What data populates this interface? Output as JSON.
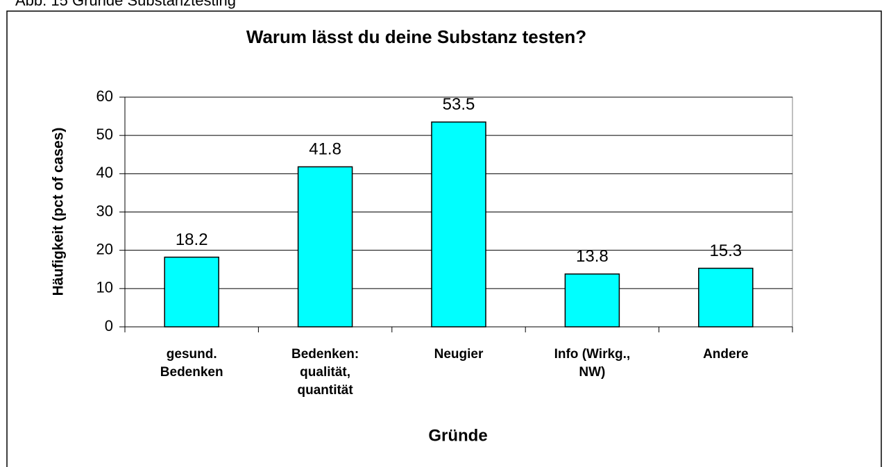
{
  "caption": "Abb. 15 Gründe Substanztesting",
  "chart_data": {
    "type": "bar",
    "title": "Warum lässt du deine Substanz testen?",
    "x_label": "Gründe",
    "y_label": "Häufigkeit (pct of cases)",
    "categories": [
      "gesund. Bedenken",
      "Bedenken: qualität, quantität",
      "Neugier",
      "Info (Wirkg., NW)",
      "Andere"
    ],
    "values": [
      18.2,
      41.8,
      53.5,
      13.8,
      15.3
    ],
    "color": "#00ffff",
    "ylim": [
      0,
      60
    ],
    "yticks": [
      0,
      10,
      20,
      30,
      40,
      50,
      60
    ],
    "grid": true
  }
}
